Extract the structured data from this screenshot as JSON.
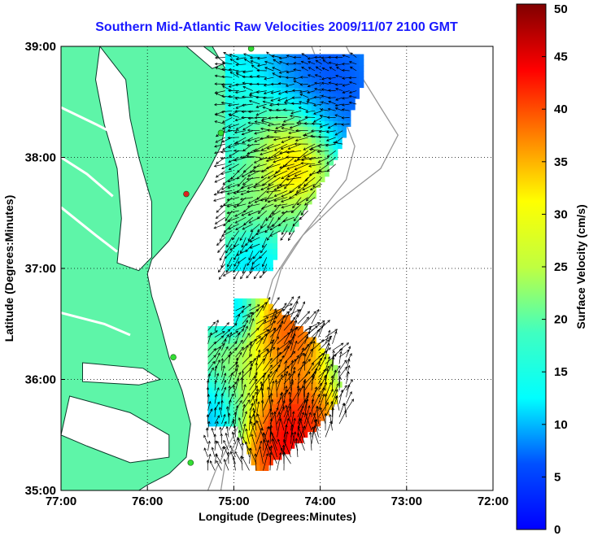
{
  "chart_data": {
    "type": "heatmap",
    "title": "Southern Mid-Atlantic Raw Velocities 2009/11/07 2100 GMT",
    "xlabel": "Longitude (Degrees:Minutes)",
    "ylabel": "Latitude (Degrees:Minutes)",
    "xlim": [
      -77,
      -72
    ],
    "ylim": [
      35,
      39
    ],
    "x_ticks": [
      {
        "value": -77,
        "label": "77:00"
      },
      {
        "value": -76,
        "label": "76:00"
      },
      {
        "value": -75,
        "label": "75:00"
      },
      {
        "value": -74,
        "label": "74:00"
      },
      {
        "value": -73,
        "label": "73:00"
      },
      {
        "value": -72,
        "label": "72:00"
      }
    ],
    "y_ticks": [
      {
        "value": 35,
        "label": "35:00"
      },
      {
        "value": 36,
        "label": "36:00"
      },
      {
        "value": 37,
        "label": "37:00"
      },
      {
        "value": 38,
        "label": "38:00"
      },
      {
        "value": 39,
        "label": "39:00"
      }
    ],
    "grid": true,
    "colorbar": {
      "label": "Surface Velocity (cm/s)",
      "range": [
        0,
        50
      ],
      "ticks": [
        0,
        5,
        10,
        15,
        20,
        25,
        30,
        35,
        40,
        45,
        50
      ],
      "colormap": "jet"
    },
    "colors": {
      "land": "#5ef5a8",
      "title": "#1a1aff",
      "station": "#33dd33",
      "station_alt": "#dd2222"
    },
    "stations": [
      {
        "lon": -74.8,
        "lat": 38.98,
        "color": "station"
      },
      {
        "lon": -75.15,
        "lat": 38.22,
        "color": "station"
      },
      {
        "lon": -75.55,
        "lat": 37.67,
        "color": "station_alt"
      },
      {
        "lon": -75.7,
        "lat": 36.2,
        "color": "station"
      },
      {
        "lon": -75.5,
        "lat": 35.25,
        "color": "station"
      }
    ],
    "regions": [
      {
        "name": "north",
        "lon_range": [
          -75.1,
          -73.55
        ],
        "lat_range": [
          36.98,
          38.92
        ],
        "hotspots": [
          {
            "lon": -74.3,
            "lat": 38.05,
            "sigma": 0.28,
            "speed": 44
          },
          {
            "lon": -74.85,
            "lat": 37.35,
            "sigma": 0.35,
            "speed": 29
          },
          {
            "lon": -74.9,
            "lat": 38.35,
            "sigma": 0.35,
            "speed": 22
          },
          {
            "lon": -74.0,
            "lat": 38.55,
            "sigma": 0.35,
            "speed": 8
          },
          {
            "lon": -74.8,
            "lat": 37.1,
            "sigma": 0.2,
            "speed": 11
          }
        ],
        "base_speed": 15,
        "flow_direction_deg": 250
      },
      {
        "name": "south",
        "lon_range": [
          -75.3,
          -73.65
        ],
        "lat_range": [
          35.18,
          36.68
        ],
        "hotspots": [
          {
            "lon": -74.4,
            "lat": 35.5,
            "sigma": 0.35,
            "speed": 52
          },
          {
            "lon": -74.4,
            "lat": 36.4,
            "sigma": 0.25,
            "speed": 46
          },
          {
            "lon": -74.9,
            "lat": 36.1,
            "sigma": 0.3,
            "speed": 28
          },
          {
            "lon": -75.2,
            "lat": 35.65,
            "sigma": 0.25,
            "speed": 12
          },
          {
            "lon": -75.0,
            "lat": 36.55,
            "sigma": 0.15,
            "speed": 14
          }
        ],
        "base_speed": 20,
        "flow_direction_deg": 20
      }
    ]
  }
}
